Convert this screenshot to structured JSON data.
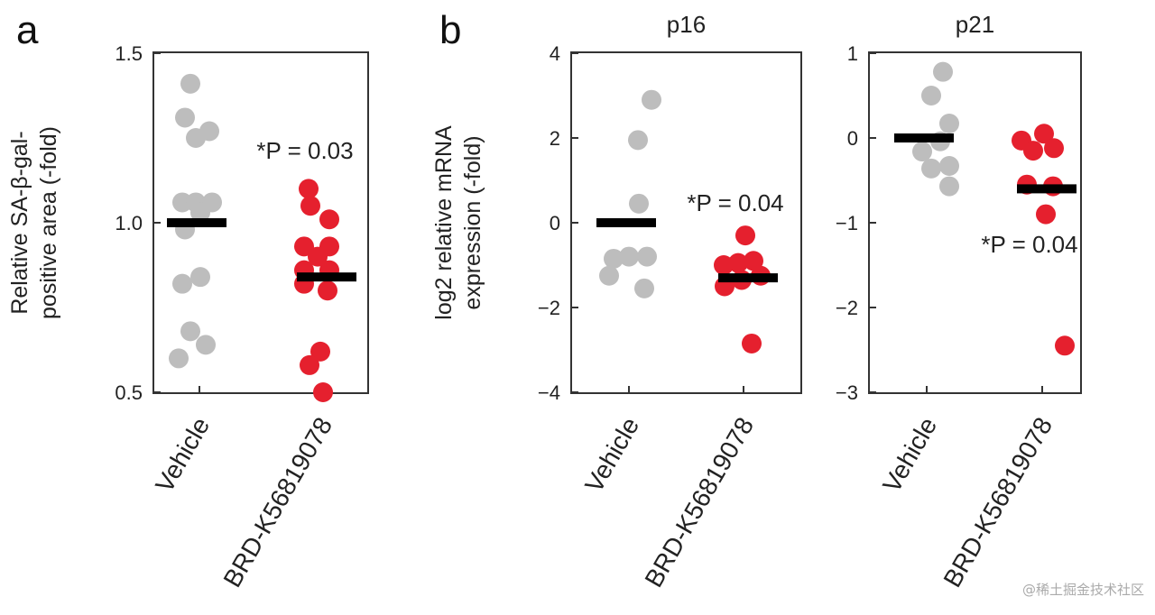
{
  "chart_data": [
    {
      "type": "scatter",
      "panel_label": "a",
      "title": "",
      "ylabel_lines": [
        "Relative SA-β-gal-",
        "positive area (-fold)"
      ],
      "ylim": [
        0.5,
        1.5
      ],
      "yticks": [
        0.5,
        1.0,
        1.5
      ],
      "ytick_labels": [
        "0.5",
        "1.0",
        "1.5"
      ],
      "categories": [
        "Vehicle",
        "BRD-K56819078"
      ],
      "annotation": "*P = 0.03",
      "series": [
        {
          "name": "Vehicle",
          "color": "#bdbdbd",
          "mean": 1.0,
          "values": [
            1.41,
            1.31,
            1.27,
            1.25,
            1.06,
            1.06,
            1.06,
            1.03,
            0.98,
            0.84,
            0.82,
            0.68,
            0.64,
            0.6
          ]
        },
        {
          "name": "BRD-K56819078",
          "color": "#e5202e",
          "mean": 0.84,
          "values": [
            1.1,
            1.05,
            1.01,
            0.93,
            0.93,
            0.9,
            0.86,
            0.86,
            0.82,
            0.8,
            0.62,
            0.58,
            0.5
          ]
        }
      ]
    },
    {
      "type": "scatter",
      "panel_label": "b",
      "title": "p16",
      "ylabel_lines": [
        "log2 relative mRNA",
        "expression (-fold)"
      ],
      "ylim": [
        -4,
        4
      ],
      "yticks": [
        -4,
        -2,
        0,
        2,
        4
      ],
      "ytick_labels": [
        "−4",
        "−2",
        "0",
        "2",
        "4"
      ],
      "categories": [
        "Vehicle",
        "BRD-K56819078"
      ],
      "annotation": "*P = 0.04",
      "series": [
        {
          "name": "Vehicle",
          "color": "#bdbdbd",
          "mean": 0,
          "values": [
            2.9,
            1.95,
            0.45,
            -0.85,
            -0.8,
            -0.8,
            -1.25,
            -1.55
          ]
        },
        {
          "name": "BRD-K56819078",
          "color": "#e5202e",
          "mean": -1.3,
          "values": [
            -0.3,
            -1.0,
            -0.95,
            -0.9,
            -1.25,
            -1.5,
            -1.35,
            -2.85
          ]
        }
      ]
    },
    {
      "type": "scatter",
      "panel_label": "",
      "title": "p21",
      "ylabel_lines": [],
      "ylim": [
        -3,
        1
      ],
      "yticks": [
        -3,
        -2,
        -1,
        0,
        1
      ],
      "ytick_labels": [
        "−3",
        "−2",
        "−1",
        "0",
        "1"
      ],
      "categories": [
        "Vehicle",
        "BRD-K56819078"
      ],
      "annotation": "*P = 0.04",
      "series": [
        {
          "name": "Vehicle",
          "color": "#bdbdbd",
          "mean": 0,
          "values": [
            0.78,
            0.5,
            0.17,
            -0.04,
            -0.16,
            -0.36,
            -0.33,
            -0.57
          ]
        },
        {
          "name": "BRD-K56819078",
          "color": "#e5202e",
          "mean": -0.6,
          "values": [
            -0.03,
            0.05,
            -0.15,
            -0.12,
            -0.55,
            -0.57,
            -0.9,
            -2.45
          ]
        }
      ]
    }
  ],
  "watermark": "@稀土掘金技术社区"
}
